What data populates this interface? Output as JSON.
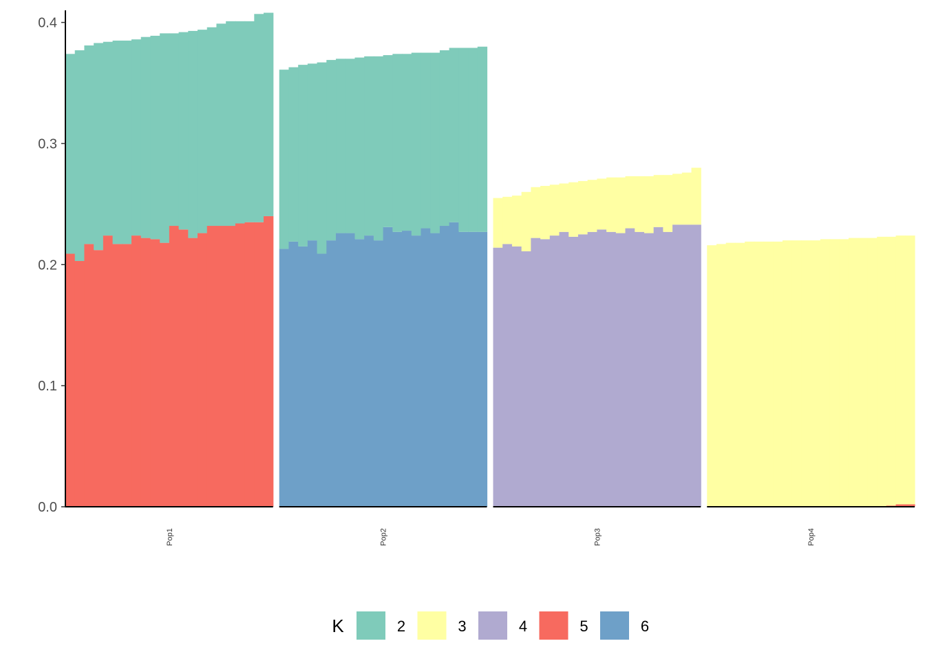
{
  "chart_data": {
    "type": "bar",
    "stacked": true,
    "grid": false,
    "legend_position": "bottom",
    "ylim": [
      0,
      0.41
    ],
    "y_ticks": [
      "0.0",
      "0.1",
      "0.2",
      "0.3",
      "0.4"
    ],
    "y_tick_values": [
      0,
      0.1,
      0.2,
      0.3,
      0.4
    ],
    "panels": [
      "Pop1",
      "Pop2",
      "Pop3",
      "Pop4"
    ],
    "legend": {
      "title": "K",
      "entries": [
        {
          "key": "2",
          "color": "#7FCBBA"
        },
        {
          "key": "3",
          "color": "#FFFFA3"
        },
        {
          "key": "4",
          "color": "#B0AAD0"
        },
        {
          "key": "5",
          "color": "#F76A5F"
        },
        {
          "key": "6",
          "color": "#6EA0C8"
        }
      ]
    },
    "series": [
      {
        "panel": "Pop1",
        "totals": [
          0.374,
          0.377,
          0.381,
          0.383,
          0.384,
          0.385,
          0.385,
          0.386,
          0.388,
          0.389,
          0.391,
          0.391,
          0.392,
          0.393,
          0.394,
          0.396,
          0.399,
          0.401,
          0.401,
          0.401,
          0.407,
          0.408
        ],
        "stack": [
          {
            "key": "5",
            "values": [
              0.209,
              0.203,
              0.217,
              0.212,
              0.224,
              0.217,
              0.217,
              0.224,
              0.222,
              0.221,
              0.218,
              0.232,
              0.229,
              0.222,
              0.226,
              0.232,
              0.232,
              0.232,
              0.234,
              0.235,
              0.235,
              0.24
            ]
          },
          {
            "key": "2",
            "values": "remainder"
          }
        ]
      },
      {
        "panel": "Pop2",
        "totals": [
          0.361,
          0.363,
          0.365,
          0.366,
          0.367,
          0.369,
          0.37,
          0.37,
          0.371,
          0.372,
          0.372,
          0.373,
          0.374,
          0.374,
          0.375,
          0.375,
          0.375,
          0.377,
          0.379,
          0.379,
          0.379,
          0.38
        ],
        "stack": [
          {
            "key": "6",
            "values": [
              0.213,
              0.219,
              0.215,
              0.22,
              0.209,
              0.22,
              0.226,
              0.226,
              0.221,
              0.224,
              0.22,
              0.231,
              0.227,
              0.228,
              0.224,
              0.23,
              0.226,
              0.232,
              0.235,
              0.227,
              0.227,
              0.227
            ]
          },
          {
            "key": "2",
            "values": "remainder"
          }
        ]
      },
      {
        "panel": "Pop3",
        "totals": [
          0.255,
          0.256,
          0.257,
          0.26,
          0.264,
          0.265,
          0.266,
          0.267,
          0.268,
          0.269,
          0.27,
          0.271,
          0.272,
          0.272,
          0.273,
          0.273,
          0.273,
          0.274,
          0.274,
          0.275,
          0.276,
          0.28
        ],
        "stack": [
          {
            "key": "4",
            "values": [
              0.214,
              0.217,
              0.215,
              0.211,
              0.222,
              0.221,
              0.224,
              0.227,
              0.223,
              0.225,
              0.227,
              0.229,
              0.227,
              0.226,
              0.23,
              0.227,
              0.226,
              0.231,
              0.227,
              0.233,
              0.233,
              0.233
            ]
          },
          {
            "key": "3",
            "values": "remainder"
          }
        ]
      },
      {
        "panel": "Pop4",
        "totals": [
          0.216,
          0.217,
          0.218,
          0.218,
          0.219,
          0.219,
          0.219,
          0.219,
          0.22,
          0.22,
          0.22,
          0.22,
          0.221,
          0.221,
          0.221,
          0.222,
          0.222,
          0.222,
          0.223,
          0.223,
          0.224,
          0.224
        ],
        "stack": [
          {
            "key": "5",
            "values": [
              0,
              0,
              0,
              0,
              0,
              0,
              0,
              0,
              0,
              0,
              0,
              0,
              0,
              0,
              0,
              0,
              0,
              0,
              0,
              0.001,
              0.002,
              0.002
            ]
          },
          {
            "key": "3",
            "values": "remainder"
          }
        ]
      }
    ]
  }
}
